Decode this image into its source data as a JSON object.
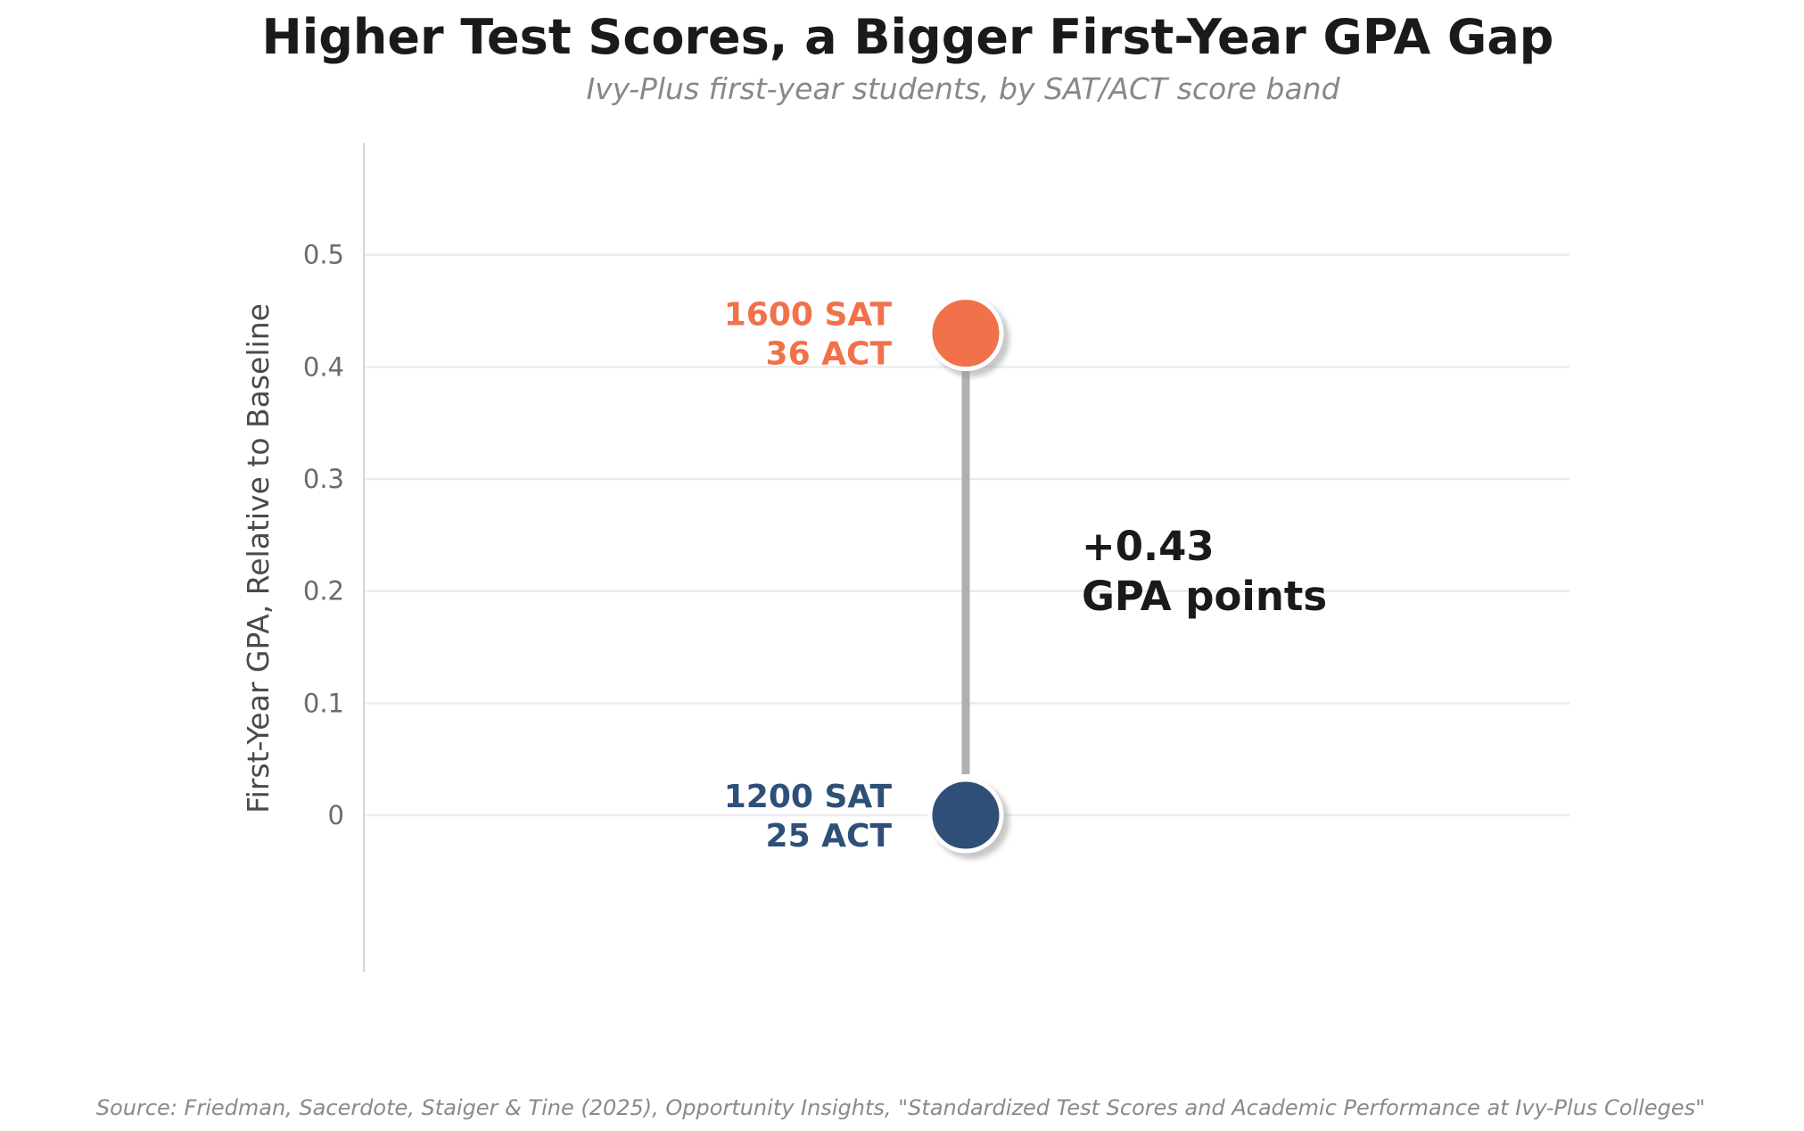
{
  "chart_data": {
    "type": "scatter",
    "title": "Higher Test Scores, a Bigger First-Year GPA Gap",
    "subtitle": "Ivy-Plus first-year students, by SAT/ACT score band",
    "ylabel": "First-Year GPA, Relative to Baseline",
    "xlabel": "",
    "ylim": [
      -0.14,
      0.6
    ],
    "yticks": [
      {
        "value": 0.0,
        "label": "0"
      },
      {
        "value": 0.1,
        "label": "0.1"
      },
      {
        "value": 0.2,
        "label": "0.2"
      },
      {
        "value": 0.3,
        "label": "0.3"
      },
      {
        "value": 0.4,
        "label": "0.4"
      },
      {
        "value": 0.5,
        "label": "0.5"
      }
    ],
    "grid": true,
    "points": [
      {
        "label_line1": "1200 SAT",
        "label_line2": "25 ACT",
        "value": 0.0,
        "color": "#2e5078"
      },
      {
        "label_line1": "1600 SAT",
        "label_line2": "36 ACT",
        "value": 0.43,
        "color": "#f0714a"
      }
    ],
    "connector_color": "#b0b0b0",
    "gap_annotation": {
      "line1": "+0.43",
      "line2": "GPA points"
    },
    "source": "Source: Friedman, Sacerdote, Staiger & Tine (2025), Opportunity Insights, \"Standardized Test Scores and Academic Performance at Ivy-Plus Colleges\""
  }
}
